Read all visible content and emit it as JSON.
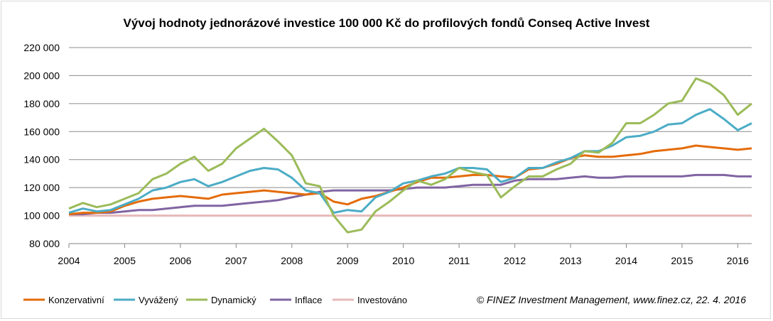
{
  "chart_data": {
    "type": "line",
    "title": "Vývoj hodnoty jednorázové investice 100 000 Kč do profilových fondů Conseq Active Invest",
    "xlabel": "",
    "ylabel": "",
    "xlim": [
      2004,
      2016.25
    ],
    "ylim": [
      80000,
      220000
    ],
    "grid": true,
    "legend_position": "bottom",
    "x_ticks": [
      "2004",
      "2005",
      "2006",
      "2007",
      "2008",
      "2009",
      "2010",
      "2011",
      "2012",
      "2013",
      "2014",
      "2015",
      "2016"
    ],
    "y_ticks": [
      "80 000",
      "100 000",
      "120 000",
      "140 000",
      "160 000",
      "180 000",
      "200 000",
      "220 000"
    ],
    "x_start": 2004,
    "x_step": 0.25,
    "series": [
      {
        "name": "Konzervativní",
        "color": "#e46c0a",
        "values": [
          101000,
          102000,
          102000,
          103000,
          107000,
          110000,
          112000,
          113000,
          114000,
          113000,
          112000,
          115000,
          116000,
          117000,
          118000,
          117000,
          116000,
          115000,
          116000,
          110000,
          108000,
          112000,
          114000,
          117000,
          120000,
          124000,
          127000,
          127000,
          128000,
          129000,
          129000,
          128000,
          127000,
          133000,
          134000,
          137000,
          141000,
          143000,
          142000,
          142000,
          143000,
          144000,
          146000,
          147000,
          148000,
          150000,
          149000,
          148000,
          147000,
          148000
        ]
      },
      {
        "name": "Vyvážený",
        "color": "#4bacc6",
        "values": [
          102000,
          105000,
          103000,
          104000,
          108000,
          112000,
          118000,
          120000,
          124000,
          126000,
          121000,
          124000,
          128000,
          132000,
          134000,
          133000,
          127000,
          118000,
          116000,
          102000,
          104000,
          103000,
          113000,
          117000,
          123000,
          125000,
          128000,
          130000,
          134000,
          134000,
          133000,
          124000,
          127000,
          134000,
          134000,
          138000,
          141000,
          146000,
          146000,
          150000,
          156000,
          157000,
          160000,
          165000,
          166000,
          172000,
          176000,
          169000,
          161000,
          166000
        ]
      },
      {
        "name": "Dynamický",
        "color": "#9bbb59",
        "values": [
          105000,
          109000,
          106000,
          108000,
          112000,
          116000,
          126000,
          130000,
          137000,
          142000,
          132000,
          137000,
          148000,
          155000,
          162000,
          153000,
          143000,
          123000,
          121000,
          100000,
          88000,
          90000,
          103000,
          110000,
          118000,
          125000,
          122000,
          126000,
          134000,
          131000,
          129000,
          113000,
          121000,
          128000,
          128000,
          133000,
          137000,
          146000,
          145000,
          152000,
          166000,
          166000,
          172000,
          180000,
          182000,
          198000,
          194000,
          186000,
          172000,
          180000
        ]
      },
      {
        "name": "Inflace",
        "color": "#8064a2",
        "values": [
          101000,
          101000,
          102000,
          102000,
          103000,
          104000,
          104000,
          105000,
          106000,
          107000,
          107000,
          107000,
          108000,
          109000,
          110000,
          111000,
          113000,
          115000,
          117000,
          118000,
          118000,
          118000,
          118000,
          118000,
          119000,
          120000,
          120000,
          120000,
          121000,
          122000,
          122000,
          122000,
          125000,
          126000,
          126000,
          126000,
          127000,
          128000,
          127000,
          127000,
          128000,
          128000,
          128000,
          128000,
          128000,
          129000,
          129000,
          129000,
          128000,
          128000
        ]
      },
      {
        "name": "Investováno",
        "color": "#e6b9b8",
        "values": [
          100000,
          100000,
          100000,
          100000,
          100000,
          100000,
          100000,
          100000,
          100000,
          100000,
          100000,
          100000,
          100000,
          100000,
          100000,
          100000,
          100000,
          100000,
          100000,
          100000,
          100000,
          100000,
          100000,
          100000,
          100000,
          100000,
          100000,
          100000,
          100000,
          100000,
          100000,
          100000,
          100000,
          100000,
          100000,
          100000,
          100000,
          100000,
          100000,
          100000,
          100000,
          100000,
          100000,
          100000,
          100000,
          100000,
          100000,
          100000,
          100000,
          100000
        ]
      }
    ],
    "annotation": "© FINEZ Investment Management, www.finez.cz, 22. 4. 2016"
  }
}
